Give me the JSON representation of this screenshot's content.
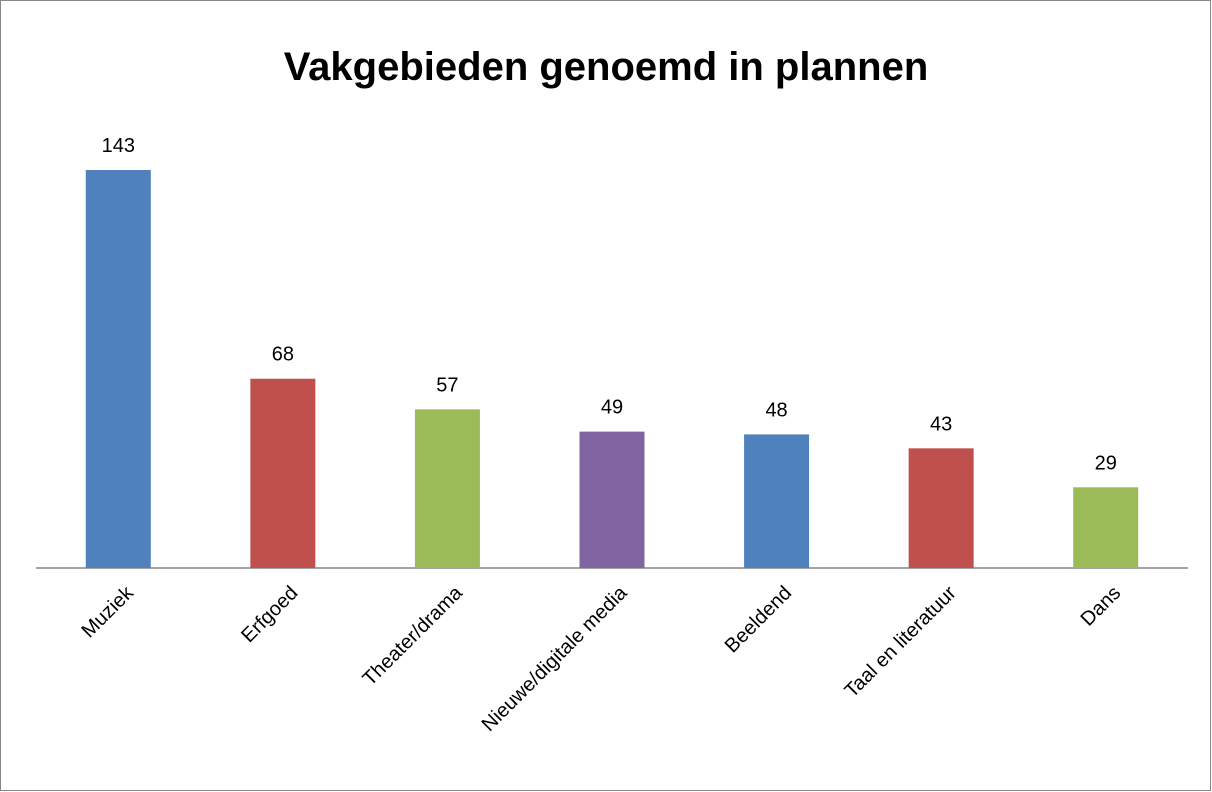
{
  "chart_data": {
    "type": "bar",
    "title": "Vakgebieden genoemd in plannen",
    "categories": [
      "Muziek",
      "Erfgoed",
      "Theater/drama",
      "Nieuwe/digitale media",
      "Beeldend",
      "Taal en literatuur",
      "Dans"
    ],
    "values": [
      143,
      68,
      57,
      49,
      48,
      43,
      29
    ],
    "colors": [
      "#4f81bd",
      "#c0504d",
      "#9bbb59",
      "#8064a2",
      "#4f81bd",
      "#c0504d",
      "#9bbb59"
    ]
  }
}
